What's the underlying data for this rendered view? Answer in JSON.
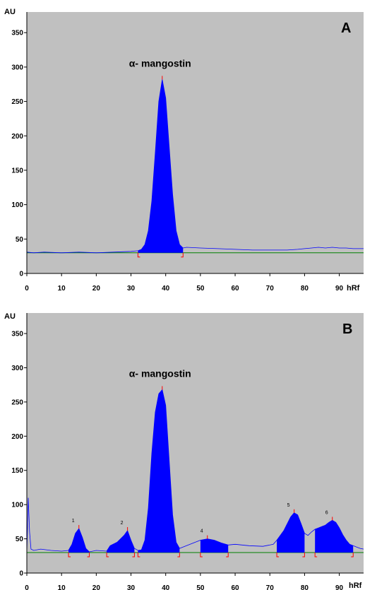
{
  "chart_data": [
    {
      "type": "area",
      "panel_label": "A",
      "ylabel": "AU",
      "xlabel": "hRf",
      "xlim": [
        0,
        97
      ],
      "ylim": [
        0,
        380
      ],
      "xticks": [
        0,
        10,
        20,
        30,
        40,
        50,
        60,
        70,
        80,
        90
      ],
      "yticks": [
        0,
        50,
        100,
        150,
        200,
        250,
        300,
        350
      ],
      "baseline": 30,
      "colors": {
        "plot_bg": "#c0c0c0",
        "fill": "#0000ff",
        "trace": "#0000ff",
        "baseline": "#008000",
        "marker": "#ff0000"
      },
      "series": [
        {
          "x": [
            0,
            2,
            5,
            10,
            15,
            20,
            25,
            30,
            32,
            33,
            34,
            35,
            36,
            37,
            38,
            39,
            40,
            41,
            42,
            43,
            44,
            45,
            46,
            50,
            55,
            60,
            65,
            70,
            75,
            78,
            80,
            82,
            84,
            86,
            88,
            90,
            92,
            94,
            97
          ],
          "y": [
            31,
            30,
            31,
            30,
            31,
            30,
            31,
            32,
            33,
            35,
            42,
            62,
            105,
            175,
            250,
            282,
            255,
            185,
            115,
            62,
            42,
            37,
            38,
            37,
            36,
            35,
            34,
            34,
            34,
            35,
            36,
            37,
            38,
            37,
            38,
            37,
            37,
            36,
            36
          ]
        }
      ],
      "peaks": [
        {
          "label": "α- mangostin",
          "x": 39,
          "y": 282,
          "start": 32,
          "end": 45
        }
      ]
    },
    {
      "type": "area",
      "panel_label": "B",
      "ylabel": "AU",
      "xlabel": "hRf",
      "xlim": [
        0,
        97
      ],
      "ylim": [
        0,
        380
      ],
      "xticks": [
        0,
        10,
        20,
        30,
        40,
        50,
        60,
        70,
        80,
        90
      ],
      "yticks": [
        0,
        50,
        100,
        150,
        200,
        250,
        300,
        350
      ],
      "baseline": 30,
      "colors": {
        "plot_bg": "#c0c0c0",
        "fill": "#0000ff",
        "trace": "#0000ff",
        "baseline": "#008000",
        "marker": "#ff0000"
      },
      "series": [
        {
          "x": [
            0,
            0.4,
            0.8,
            1.2,
            2,
            4,
            7,
            10,
            12,
            13,
            14,
            15,
            16,
            17,
            18,
            20,
            23,
            24,
            26,
            28,
            29,
            30,
            31,
            32,
            33,
            34,
            35,
            36,
            37,
            38,
            39,
            40,
            41,
            42,
            43,
            44,
            46,
            48,
            50,
            52,
            54,
            56,
            58,
            60,
            64,
            68,
            71,
            72,
            73,
            74,
            75,
            76,
            77,
            78,
            79,
            80,
            81,
            82,
            83,
            84,
            85,
            86,
            87,
            88,
            89,
            90,
            91,
            92,
            93,
            94,
            95,
            96,
            97
          ],
          "y": [
            30,
            110,
            60,
            35,
            33,
            35,
            33,
            32,
            33,
            42,
            58,
            65,
            52,
            36,
            31,
            33,
            32,
            40,
            45,
            55,
            62,
            48,
            36,
            33,
            34,
            48,
            95,
            175,
            235,
            262,
            268,
            245,
            165,
            85,
            45,
            36,
            40,
            44,
            48,
            50,
            48,
            44,
            41,
            42,
            40,
            39,
            42,
            48,
            55,
            62,
            72,
            82,
            88,
            85,
            72,
            58,
            55,
            60,
            64,
            66,
            68,
            70,
            74,
            77,
            74,
            66,
            56,
            48,
            42,
            40,
            38,
            36,
            35
          ]
        }
      ],
      "peaks": [
        {
          "label": "1",
          "x": 15,
          "y": 65,
          "start": 12,
          "end": 18
        },
        {
          "label": "2",
          "x": 29,
          "y": 62,
          "start": 23,
          "end": 31
        },
        {
          "label": "α- mangostin",
          "x": 39,
          "y": 268,
          "start": 32,
          "end": 44
        },
        {
          "label": "4",
          "x": 52,
          "y": 50,
          "start": 50,
          "end": 58
        },
        {
          "label": "5",
          "x": 77,
          "y": 88,
          "start": 72,
          "end": 80
        },
        {
          "label": "6",
          "x": 88,
          "y": 77,
          "start": 83,
          "end": 94
        }
      ]
    }
  ]
}
